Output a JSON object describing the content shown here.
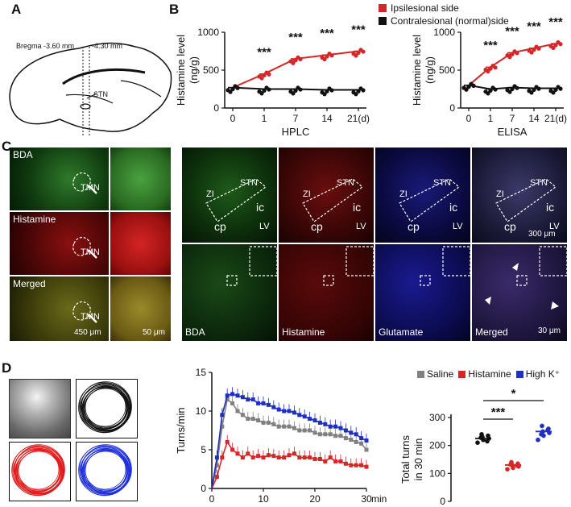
{
  "panels": {
    "A": "A",
    "B": "B",
    "C": "C",
    "D": "D"
  },
  "panelA": {
    "bregma1": "Bregma -3.60 mm",
    "bregma2": "-4.30 mm",
    "stn": "STN"
  },
  "panelB": {
    "legend": [
      {
        "label": "Ipsilesional side",
        "color": "#d62728"
      },
      {
        "label": "Contralesional (normal)side",
        "color": "#111111"
      }
    ]
  },
  "panelC": {
    "left_labels": [
      "BDA",
      "Histamine",
      "Merged"
    ],
    "tmn": "TMN",
    "scale_left": "450 μm",
    "scale_mid": "50 μm",
    "region": {
      "stn": "STN",
      "zi": "ZI",
      "ic": "ic",
      "cp": "cp",
      "lv": "LV"
    },
    "scale_right_top": "300 μm",
    "bottom_labels": [
      "BDA",
      "Histamine",
      "Glutamate",
      "Merged"
    ],
    "scale_right_bottom": "30 μm"
  },
  "panelD": {
    "legend": [
      {
        "label": "Saline",
        "color": "#808080"
      },
      {
        "label": "Histamine",
        "color": "#d62728"
      },
      {
        "label": "High K⁺",
        "color": "#1f2fbf"
      }
    ]
  },
  "chart_data": [
    {
      "id": "hplc",
      "type": "line",
      "xlabel": "HPLC",
      "ylabel": "Histamine level (ng/g)",
      "categories": [
        "0",
        "1",
        "7",
        "14",
        "21(d)"
      ],
      "ylim": [
        0,
        1000
      ],
      "yticks": [
        0,
        500,
        1000
      ],
      "series": [
        {
          "name": "Ipsilesional side",
          "color": "#d62728",
          "values": [
            270,
            450,
            650,
            700,
            750
          ]
        },
        {
          "name": "Contralesional (normal)side",
          "color": "#111111",
          "values": [
            270,
            250,
            250,
            240,
            240
          ]
        }
      ],
      "significance": [
        "",
        "***",
        "***",
        "***",
        "***"
      ]
    },
    {
      "id": "elisa",
      "type": "line",
      "xlabel": "ELISA",
      "ylabel": "Histamine level (ng/g)",
      "categories": [
        "0",
        "1",
        "7",
        "14",
        "21(d)"
      ],
      "ylim": [
        0,
        1000
      ],
      "yticks": [
        0,
        500,
        1000
      ],
      "series": [
        {
          "name": "Ipsilesional side",
          "color": "#d62728",
          "values": [
            300,
            540,
            730,
            790,
            850
          ]
        },
        {
          "name": "Contralesional (normal)side",
          "color": "#111111",
          "values": [
            300,
            250,
            270,
            260,
            260
          ]
        }
      ],
      "significance": [
        "",
        "***",
        "***",
        "***",
        "***"
      ]
    },
    {
      "id": "turns",
      "type": "line",
      "ylabel": "Turns/min",
      "xlabel": "min",
      "xlim": [
        0,
        30
      ],
      "ylim": [
        0,
        15
      ],
      "xticks": [
        "0",
        "10",
        "20",
        "30"
      ],
      "yticks": [
        0,
        5,
        10,
        15
      ],
      "x": [
        1,
        2,
        3,
        4,
        5,
        6,
        7,
        8,
        9,
        10,
        11,
        12,
        13,
        14,
        15,
        16,
        17,
        18,
        19,
        20,
        21,
        22,
        23,
        24,
        25,
        26,
        27,
        28,
        29,
        30
      ],
      "series": [
        {
          "name": "Saline",
          "color": "#808080",
          "values": [
            3,
            8,
            11.5,
            11,
            10,
            9.5,
            9,
            9,
            8.8,
            8.5,
            8.5,
            8.3,
            8,
            8,
            8,
            7.8,
            7.5,
            7.5,
            7.5,
            7.2,
            7,
            7,
            7,
            6.8,
            6.8,
            6.5,
            6.3,
            6,
            5.8,
            5
          ]
        },
        {
          "name": "Histamine",
          "color": "#d62728",
          "values": [
            1.5,
            4,
            6,
            5,
            4.5,
            4,
            4.5,
            4,
            4.2,
            4,
            4.3,
            4.2,
            4,
            4,
            4.3,
            4.5,
            4,
            4,
            4,
            3.8,
            3.8,
            3.5,
            4,
            3.5,
            3.5,
            3.2,
            3,
            3,
            3,
            2.8
          ]
        },
        {
          "name": "High K⁺",
          "color": "#1f2fbf",
          "values": [
            4,
            9.5,
            12,
            12.2,
            12,
            11.8,
            11.5,
            11.5,
            11,
            11,
            10.8,
            10.5,
            10.2,
            10,
            10,
            9.8,
            9.5,
            9.3,
            9,
            8.8,
            8.5,
            8.3,
            8,
            8,
            7.8,
            7.5,
            7.2,
            7,
            6.5,
            6.2
          ]
        }
      ]
    },
    {
      "id": "total",
      "type": "scatter",
      "ylabel": "Total turns in 30 min",
      "ylim": [
        0,
        300
      ],
      "yticks": [
        0,
        100,
        200,
        300
      ],
      "groups": [
        {
          "name": "Saline",
          "color": "#111111",
          "mean": 225,
          "values": [
            210,
            220,
            225,
            230,
            235,
            240,
            215,
            228
          ]
        },
        {
          "name": "Histamine",
          "color": "#d62728",
          "mean": 130,
          "values": [
            115,
            120,
            125,
            130,
            135,
            140,
            128,
            132
          ]
        },
        {
          "name": "High K⁺",
          "color": "#1f2fbf",
          "mean": 250,
          "values": [
            220,
            235,
            245,
            250,
            260,
            270,
            255,
            240
          ]
        }
      ],
      "significance": [
        {
          "pair": [
            0,
            1
          ],
          "label": "***"
        },
        {
          "pair": [
            0,
            2
          ],
          "label": "*"
        }
      ]
    }
  ]
}
